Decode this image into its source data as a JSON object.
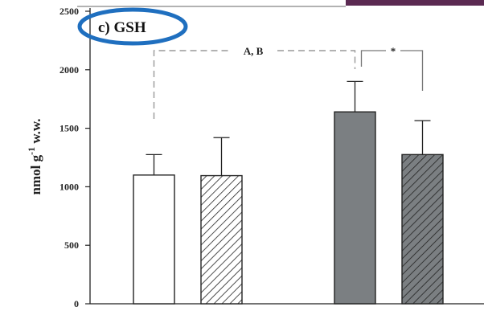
{
  "chart_data": {
    "type": "bar",
    "title": "c) GSH",
    "ylabel": "nmol g-1 w.w.",
    "ylabel_parts": {
      "base": "nmol g",
      "sup": "-1",
      "tail": " w.w."
    },
    "ylim": [
      0,
      2500
    ],
    "yticks": [
      0,
      500,
      1000,
      1500,
      2000,
      2500
    ],
    "grid": false,
    "bars": [
      {
        "value": 1100,
        "error": 175,
        "fill": "white",
        "hatched": false
      },
      {
        "value": 1095,
        "error": 325,
        "fill": "white",
        "hatched": true
      },
      {
        "value": 1640,
        "error": 260,
        "fill": "gray",
        "hatched": false
      },
      {
        "value": 1275,
        "error": 290,
        "fill": "gray",
        "hatched": true
      }
    ],
    "significance": [
      {
        "label": "A, B",
        "from_bar": 0,
        "to_bar": 2,
        "style": "dashed"
      },
      {
        "label": "*",
        "from_bar": 2,
        "to_bar": 3,
        "style": "solid"
      }
    ]
  },
  "colors": {
    "bar_white": "#ffffff",
    "bar_gray": "#7b7f82",
    "outline": "#222222",
    "highlight_ellipse": "#1f6fbf",
    "corner_band": "#5b2a52"
  }
}
